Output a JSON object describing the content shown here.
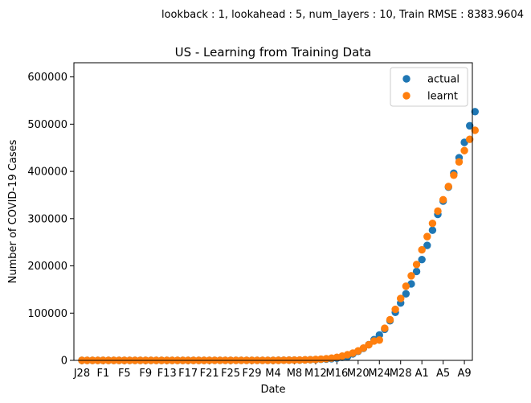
{
  "chart_data": {
    "type": "scatter",
    "suptitle": "lookback : 1, lookahead : 5, num_layers : 10, Train RMSE : 8383.9604",
    "title": "US - Learning from Training Data",
    "xlabel": "Date",
    "ylabel": "Number of COVID-19 Cases",
    "ylim": [
      0,
      630000
    ],
    "xlim": [
      -1.5,
      73.5
    ],
    "x_ticks": [
      {
        "pos": 0,
        "label": "J28"
      },
      {
        "pos": 4,
        "label": "F1"
      },
      {
        "pos": 8,
        "label": "F5"
      },
      {
        "pos": 12,
        "label": "F9"
      },
      {
        "pos": 16,
        "label": "F13"
      },
      {
        "pos": 20,
        "label": "F17"
      },
      {
        "pos": 24,
        "label": "F21"
      },
      {
        "pos": 28,
        "label": "F25"
      },
      {
        "pos": 32,
        "label": "F29"
      },
      {
        "pos": 36,
        "label": "M4"
      },
      {
        "pos": 40,
        "label": "M8"
      },
      {
        "pos": 44,
        "label": "M12"
      },
      {
        "pos": 48,
        "label": "M16"
      },
      {
        "pos": 52,
        "label": "M20"
      },
      {
        "pos": 56,
        "label": "M24"
      },
      {
        "pos": 60,
        "label": "M28"
      },
      {
        "pos": 64,
        "label": "A1"
      },
      {
        "pos": 68,
        "label": "A5"
      },
      {
        "pos": 72,
        "label": "A9"
      }
    ],
    "y_ticks": [
      0,
      100000,
      200000,
      300000,
      400000,
      500000,
      600000
    ],
    "legend_position": "top-right",
    "series": [
      {
        "name": "actual",
        "color": "#1f77b4",
        "values": [
          5,
          5,
          5,
          6,
          6,
          8,
          11,
          11,
          11,
          11,
          11,
          12,
          12,
          12,
          13,
          13,
          13,
          15,
          15,
          15,
          15,
          15,
          15,
          15,
          35,
          35,
          35,
          53,
          57,
          60,
          60,
          62,
          70,
          76,
          101,
          122,
          153,
          221,
          278,
          417,
          537,
          605,
          959,
          1281,
          1663,
          2179,
          2726,
          3499,
          4632,
          6421,
          7786,
          13680,
          19101,
          25493,
          33276,
          43847,
          53740,
          65778,
          83836,
          101657,
          121465,
          140909,
          161831,
          188172,
          213372,
          243453,
          275586,
          308850,
          337072,
          366614,
          396223,
          429052,
          461437,
          496535,
          526396
        ]
      },
      {
        "name": "learnt",
        "color": "#ff7f0e",
        "values": [
          6,
          6,
          6,
          7,
          7,
          9,
          12,
          12,
          12,
          12,
          12,
          13,
          13,
          13,
          14,
          14,
          14,
          16,
          16,
          16,
          16,
          16,
          16,
          16,
          36,
          36,
          36,
          54,
          58,
          61,
          61,
          63,
          71,
          77,
          100,
          125,
          150,
          225,
          290,
          420,
          560,
          720,
          1050,
          1400,
          1900,
          2600,
          3500,
          4800,
          6500,
          9000,
          12000,
          15500,
          20000,
          26000,
          33000,
          41000,
          43000,
          68000,
          86000,
          108000,
          131000,
          157000,
          179000,
          203000,
          234000,
          262000,
          290000,
          316000,
          340000,
          368000,
          392000,
          420000,
          444000,
          468000,
          487000
        ]
      }
    ]
  }
}
